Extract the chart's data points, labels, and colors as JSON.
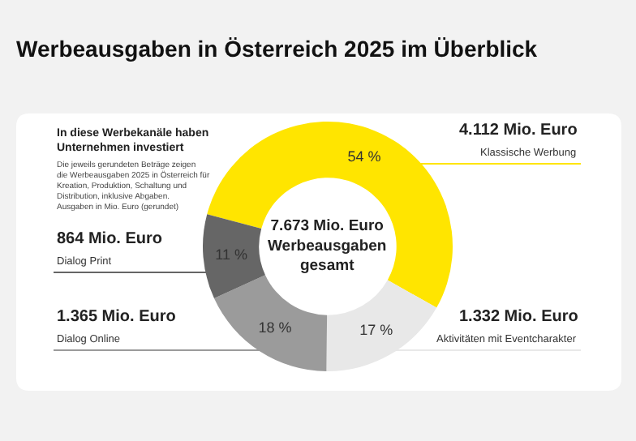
{
  "chart_data": {
    "type": "donut",
    "title": "Werbeausgaben in Österreich 2025 im Überblick",
    "subtitle": "In diese Werbekanäle haben Unternehmen investiert",
    "categories": [
      "Klassische Werbung",
      "Aktivitäten mit Eventcharakter",
      "Dialog Online",
      "Dialog Print"
    ],
    "values": [
      54,
      17,
      18,
      11
    ],
    "value_labels": [
      "54 %",
      "17 %",
      "18 %",
      "11 %"
    ],
    "colors": [
      "#ffe500",
      "#e8e8e8",
      "#9b9b9b",
      "#666666"
    ],
    "annotations": [
      "4.112 Mio. Euro",
      "1.332 Mio. Euro",
      "1.365 Mio. Euro",
      "864 Mio. Euro",
      "7.673 Mio. Euro Werbeausgaben gesamt",
      "Die jeweils gerundeten Beträge zeigen die Werbeausgaben 2025 in Österreich für Kreation, Produktion, Schaltung und Distribution, inklusive Abgaben. Ausgaben in Mio. Euro (gerundet)"
    ],
    "legend": false
  }
}
